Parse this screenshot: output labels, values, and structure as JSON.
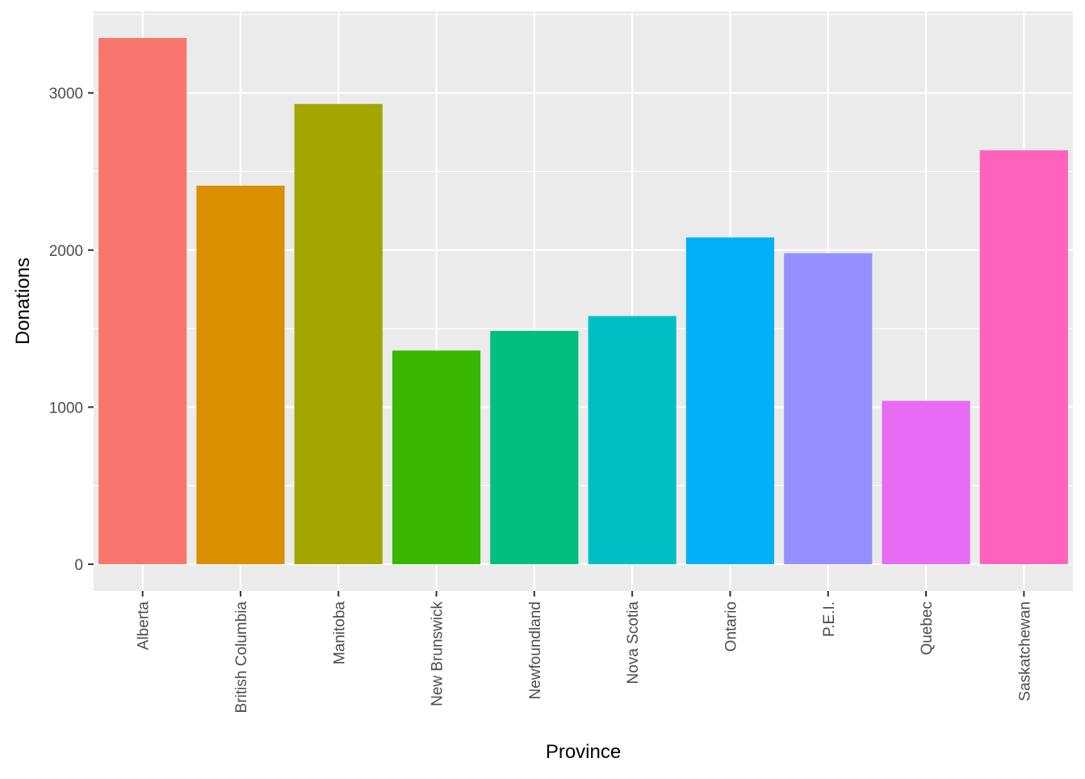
{
  "chart_data": {
    "type": "bar",
    "title": "",
    "xlabel": "Province",
    "ylabel": "Donations",
    "categories": [
      "Alberta",
      "British Columbia",
      "Manitoba",
      "New Brunswick",
      "Newfoundland",
      "Nova Scotia",
      "Ontario",
      "P.E.I.",
      "Quebec",
      "Saskatchewan"
    ],
    "values": [
      3350,
      2410,
      2930,
      1360,
      1485,
      1580,
      2080,
      1980,
      1040,
      2635
    ],
    "colors": [
      "#F8766D",
      "#D89000",
      "#A3A500",
      "#39B600",
      "#00BF7D",
      "#00BFC4",
      "#00B0F6",
      "#9590FF",
      "#E76BF3",
      "#FF62BC"
    ],
    "ylim": [
      -170,
      3520
    ],
    "y_ticks": [
      0,
      1000,
      2000,
      3000
    ],
    "y_tick_labels": [
      "0",
      "1000",
      "2000",
      "3000"
    ],
    "panel_background": "#EBEBEB",
    "grid": true,
    "legend": "none"
  }
}
